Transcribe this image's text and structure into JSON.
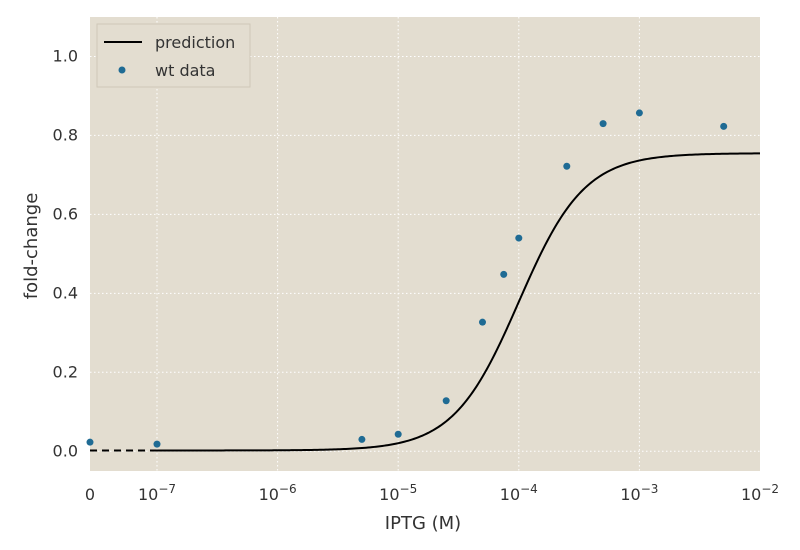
{
  "chart_data": {
    "type": "line",
    "xlabel": "IPTG (M)",
    "ylabel": "fold-change",
    "xscale": "log",
    "x_tick_labels": [
      {
        "value": 0,
        "base": "0",
        "exp": ""
      },
      {
        "value": 1e-07,
        "base": "10",
        "exp": "−7"
      },
      {
        "value": 1e-06,
        "base": "10",
        "exp": "−6"
      },
      {
        "value": 1e-05,
        "base": "10",
        "exp": "−5"
      },
      {
        "value": 0.0001,
        "base": "10",
        "exp": "−4"
      },
      {
        "value": 0.001,
        "base": "10",
        "exp": "−3"
      },
      {
        "value": 0.01,
        "base": "10",
        "exp": "−2"
      }
    ],
    "y_tick_labels": [
      "0.0",
      "0.2",
      "0.4",
      "0.6",
      "0.8",
      "1.0"
    ],
    "y_ticks": [
      0.0,
      0.2,
      0.4,
      0.6,
      0.8,
      1.0
    ],
    "ylim": [
      -0.05,
      1.1
    ],
    "grid": true,
    "legend_position": "top-left",
    "legend": {
      "line_label": "prediction",
      "scatter_label": "wt data"
    },
    "series": [
      {
        "name": "prediction",
        "kind": "line",
        "color": "#000000",
        "model": {
          "leakiness": 0.002,
          "saturation": 0.755,
          "ec50": 0.0001,
          "hill": 1.6
        },
        "zero_segment_value": 0.002
      },
      {
        "name": "wt data",
        "kind": "scatter",
        "color": "#1f6b94",
        "points": [
          {
            "x": 0,
            "y": 0.023
          },
          {
            "x": 1e-07,
            "y": 0.018
          },
          {
            "x": 5e-06,
            "y": 0.03
          },
          {
            "x": 1e-05,
            "y": 0.043
          },
          {
            "x": 2.5e-05,
            "y": 0.128
          },
          {
            "x": 5e-05,
            "y": 0.327
          },
          {
            "x": 7.5e-05,
            "y": 0.448
          },
          {
            "x": 0.0001,
            "y": 0.54
          },
          {
            "x": 0.00025,
            "y": 0.722
          },
          {
            "x": 0.0005,
            "y": 0.83
          },
          {
            "x": 0.001,
            "y": 0.857
          },
          {
            "x": 0.005,
            "y": 0.823
          }
        ]
      }
    ]
  },
  "colors": {
    "plot_background": "#e3ddd0",
    "grid": "#ffffff",
    "line": "#000000",
    "scatter": "#1f6b94"
  }
}
